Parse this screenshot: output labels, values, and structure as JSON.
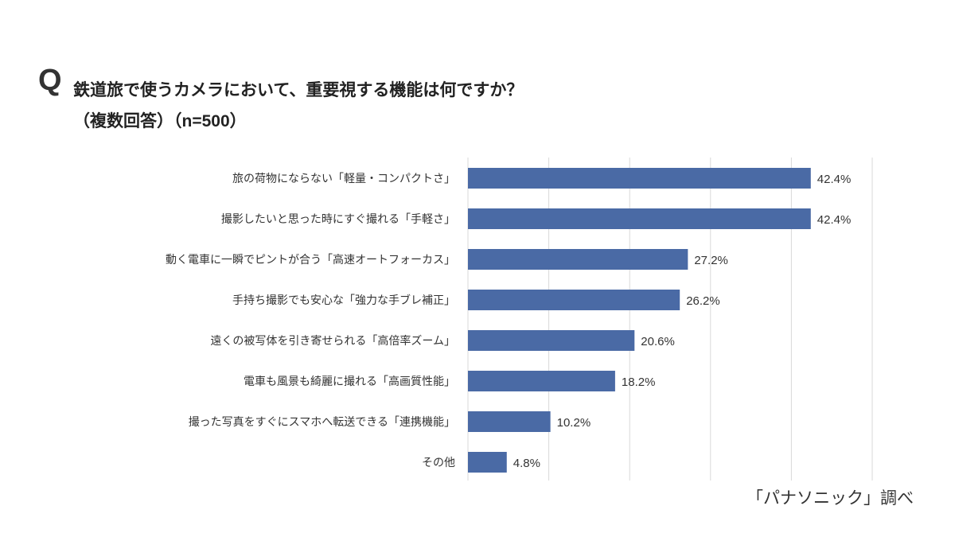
{
  "header": {
    "q_mark": "Q",
    "title": "鉄道旅で使うカメラにおいて、重要視する機能は何ですか？",
    "subtitle": "（複数回答）（n=500）"
  },
  "source": "「パナソニック」調べ",
  "chart_data": {
    "type": "bar",
    "orientation": "horizontal",
    "title": "鉄道旅で使うカメラにおいて、重要視する機能は何ですか？",
    "categories": [
      "旅の荷物にならない「軽量・コンパクトさ」",
      "撮影したいと思った時にすぐ撮れる「手軽さ」",
      "動く電車に一瞬でピントが合う「高速オートフォーカス」",
      "手持ち撮影でも安心な「強力な手ブレ補正」",
      "遠くの被写体を引き寄せられる「高倍率ズーム」",
      "電車も風景も綺麗に撮れる「高画質性能」",
      "撮った写真をすぐにスマホへ転送できる「連携機能」",
      "その他"
    ],
    "values": [
      42.4,
      42.4,
      27.2,
      26.2,
      20.6,
      18.2,
      10.2,
      4.8
    ],
    "labels": [
      "42.4%",
      "42.4%",
      "27.2%",
      "26.2%",
      "20.6%",
      "18.2%",
      "10.2%",
      "4.8%"
    ],
    "unit": "%",
    "xlim": [
      0,
      50
    ],
    "grid": true,
    "grid_step": 10,
    "bar_color": "#4a6aa5",
    "grid_color": "#d9d9d9"
  }
}
